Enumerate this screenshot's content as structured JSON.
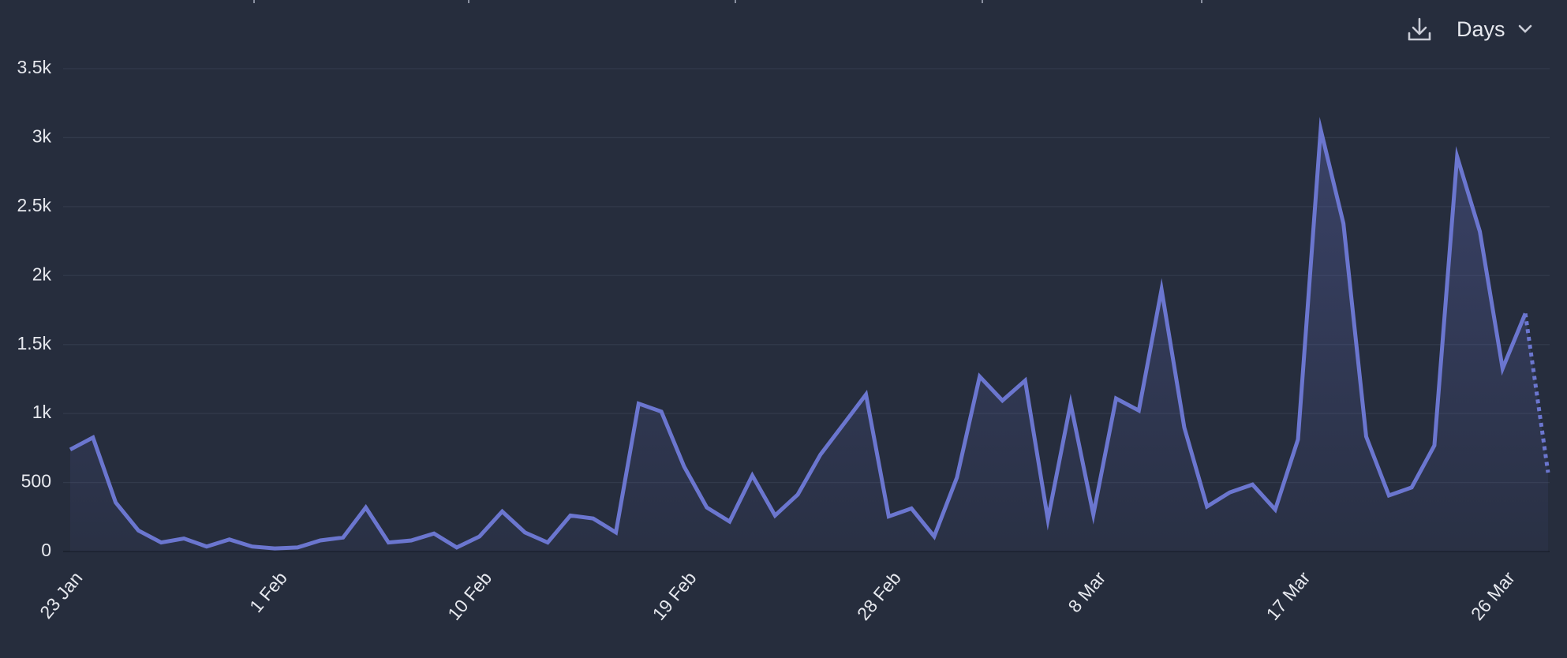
{
  "chart_data": {
    "type": "line",
    "categories": [
      "23 Jan",
      null,
      null,
      null,
      null,
      null,
      null,
      null,
      null,
      "1 Feb",
      null,
      null,
      null,
      null,
      null,
      null,
      null,
      null,
      "10 Feb",
      null,
      null,
      null,
      null,
      null,
      null,
      null,
      null,
      "19 Feb",
      null,
      null,
      null,
      null,
      null,
      null,
      null,
      null,
      "28 Feb",
      null,
      null,
      null,
      null,
      null,
      null,
      null,
      null,
      "8 Mar",
      null,
      null,
      null,
      null,
      null,
      null,
      null,
      null,
      "17 Mar",
      null,
      null,
      null,
      null,
      null,
      null,
      null,
      null,
      "26 Mar",
      null,
      null
    ],
    "series": [
      {
        "color": "#6b76cf",
        "values": [
          739,
          826,
          355,
          152,
          65,
          94,
          36,
          87,
          36,
          22,
          29,
          80,
          101,
          319,
          65,
          80,
          130,
          29,
          109,
          290,
          138,
          65,
          261,
          239,
          138,
          1072,
          1014,
          616,
          319,
          217,
          551,
          261,
          413,
          703,
          920,
          1138,
          254,
          312,
          109,
          536,
          1268,
          1094,
          1239,
          232,
          1072,
          268,
          1109,
          1022,
          1899,
          899,
          326,
          428,
          485,
          304,
          812,
          3058,
          2377,
          833,
          406,
          464,
          768,
          2862,
          2319,
          1326,
          1725,
          572
        ]
      }
    ],
    "ylim": [
      0,
      3500
    ],
    "yticks": [
      0,
      500,
      {
        "value": 1000,
        "label": "1k"
      },
      {
        "value": 1500,
        "label": "1.5k"
      },
      {
        "value": 2000,
        "label": "2k"
      },
      {
        "value": 2500,
        "label": "2.5k"
      },
      {
        "value": 3000,
        "label": "3k"
      },
      {
        "value": 3500,
        "label": "3.5k"
      }
    ],
    "grid": true,
    "last_segment_dotted": true
  },
  "controls": {
    "period": "Days"
  }
}
